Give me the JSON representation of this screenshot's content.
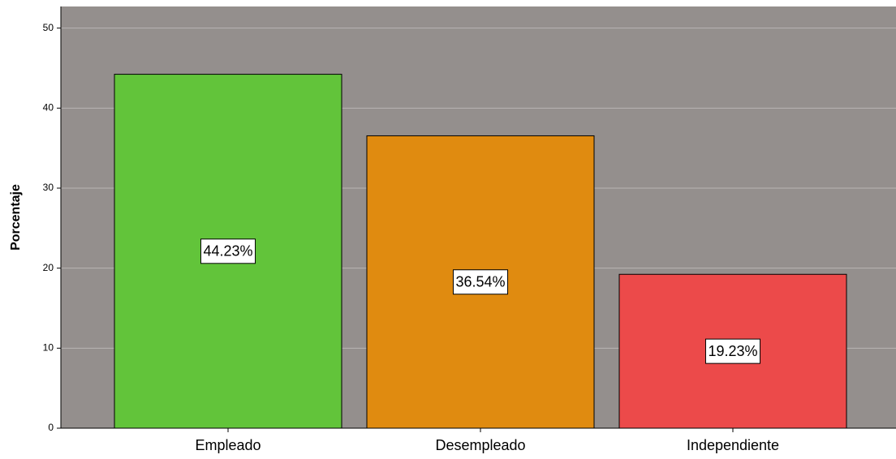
{
  "chart_data": {
    "type": "bar",
    "ylabel": "Porcentaje",
    "categories": [
      "Empleado",
      "Desempleado",
      "Independiente"
    ],
    "values": [
      44.23,
      36.54,
      19.23
    ],
    "value_labels": [
      "44.23%",
      "36.54%",
      "19.23%"
    ],
    "colors": [
      "#62c43a",
      "#e08b10",
      "#ec4a4a"
    ],
    "ylim": [
      0,
      52.7
    ],
    "yticks": [
      0,
      10,
      20,
      30,
      40,
      50
    ],
    "grid": true
  }
}
